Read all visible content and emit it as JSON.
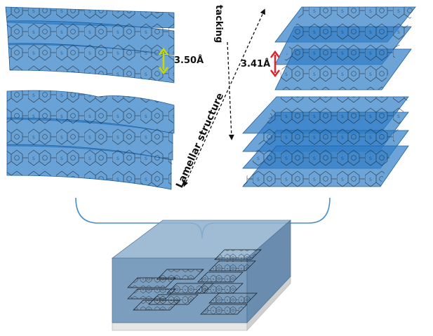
{
  "labels": {
    "spacing_left": "3.50Å",
    "spacing_right": "3.41Å",
    "lamellar": "Lamellar structure",
    "stacking": "tacking"
  },
  "colors": {
    "sheet_fill": "#2f7ec7",
    "sheet_edge": "#1f5f9e",
    "molecule_line": "#1a1a1a",
    "arrow_left": "#c7d80a",
    "arrow_right": "#e0242a",
    "bracket": "#4a90c8",
    "film": "#6e94b7",
    "substrate": "#d9d9d9"
  },
  "icons": [
    "double-arrow-icon",
    "dashed-arrow-icon",
    "bracket-icon"
  ]
}
